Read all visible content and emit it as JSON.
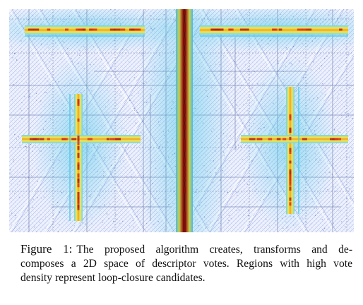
{
  "figure": {
    "caption_label": "Figure 1:",
    "caption_lines": [
      "The proposed algorithm creates, transforms and de-",
      "composes a 2D space of descriptor votes. Regions with high vote",
      "density represent loop-closure candidates."
    ],
    "colors": {
      "background": "#f2f5ff",
      "noise": "#5a6fc0",
      "grid": "#6b7aa8",
      "low_vote": "#53c9e8",
      "mid_vote": "#f3e84a",
      "high_vote": "#d8321f",
      "peak": "#7a0f0a"
    }
  }
}
